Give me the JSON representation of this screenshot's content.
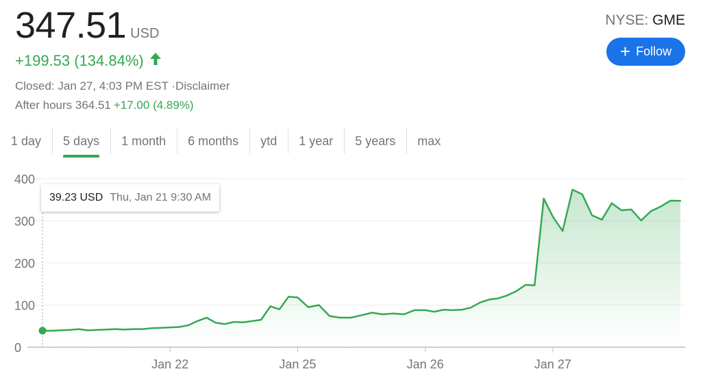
{
  "quote": {
    "price": "347.51",
    "currency": "USD",
    "change": "+199.53 (134.84%)",
    "closed_label": "Closed: Jan 27, 4:03 PM EST ·",
    "disclaimer": "Disclaimer",
    "after_hours_label": "After hours 364.51",
    "after_hours_change": "+17.00 (4.89%)",
    "exchange": "NYSE:",
    "ticker": "GME",
    "follow_label": "Follow",
    "accent_color": "#34a853",
    "button_color": "#1a73e8"
  },
  "tabs": [
    {
      "label": "1 day",
      "active": false
    },
    {
      "label": "5 days",
      "active": true
    },
    {
      "label": "1 month",
      "active": false
    },
    {
      "label": "6 months",
      "active": false
    },
    {
      "label": "ytd",
      "active": false
    },
    {
      "label": "1 year",
      "active": false
    },
    {
      "label": "5 years",
      "active": false
    },
    {
      "label": "max",
      "active": false
    }
  ],
  "tooltip": {
    "value": "39.23 USD",
    "time": "Thu, Jan 21 9:30 AM"
  },
  "chart_data": {
    "type": "area",
    "title": "",
    "xlabel": "",
    "ylabel": "",
    "ylim": [
      0,
      400
    ],
    "y_ticks": [
      0,
      100,
      200,
      300,
      400
    ],
    "x_ticks": [
      {
        "label": "Jan 22",
        "x": 1
      },
      {
        "label": "Jan 25",
        "x": 2
      },
      {
        "label": "Jan 26",
        "x": 3
      },
      {
        "label": "Jan 27",
        "x": 4
      }
    ],
    "xlim": [
      0,
      5
    ],
    "grid": true,
    "line_color": "#34a853",
    "series": [
      {
        "x": [
          0,
          0.071,
          0.143,
          0.214,
          0.286,
          0.357,
          0.429,
          0.5,
          0.571,
          0.643,
          0.714,
          0.786,
          0.857,
          0.929,
          1.0,
          1.071,
          1.143,
          1.214,
          1.286,
          1.357,
          1.429,
          1.5,
          1.571,
          1.643,
          1.714,
          1.786,
          1.857,
          1.929,
          2.0,
          2.083,
          2.167,
          2.25,
          2.333,
          2.417,
          2.5,
          2.583,
          2.667,
          2.75,
          2.833,
          2.917,
          3.0,
          3.071,
          3.143,
          3.214,
          3.286,
          3.357,
          3.429,
          3.5,
          3.571,
          3.643,
          3.714,
          3.786,
          3.857,
          3.929,
          4.0,
          4.077,
          4.154,
          4.231,
          4.308,
          4.385,
          4.462,
          4.538,
          4.615,
          4.692,
          4.769,
          4.846,
          4.923,
          5.0
        ],
        "values": [
          39.23,
          39,
          40,
          41,
          43,
          40,
          41,
          42,
          43,
          42,
          43,
          43,
          45,
          46,
          47,
          48,
          52,
          62,
          70,
          58,
          55,
          60,
          59,
          62,
          65,
          97,
          90,
          120,
          118,
          95,
          100,
          74,
          70,
          70,
          76,
          82,
          78,
          80,
          78,
          88,
          88,
          84,
          89,
          88,
          89,
          94,
          106,
          113,
          116,
          123,
          133,
          148,
          147,
          353,
          310,
          276,
          374,
          363,
          313,
          303,
          342,
          325,
          327,
          301,
          323,
          334,
          348,
          347.51
        ]
      }
    ]
  }
}
